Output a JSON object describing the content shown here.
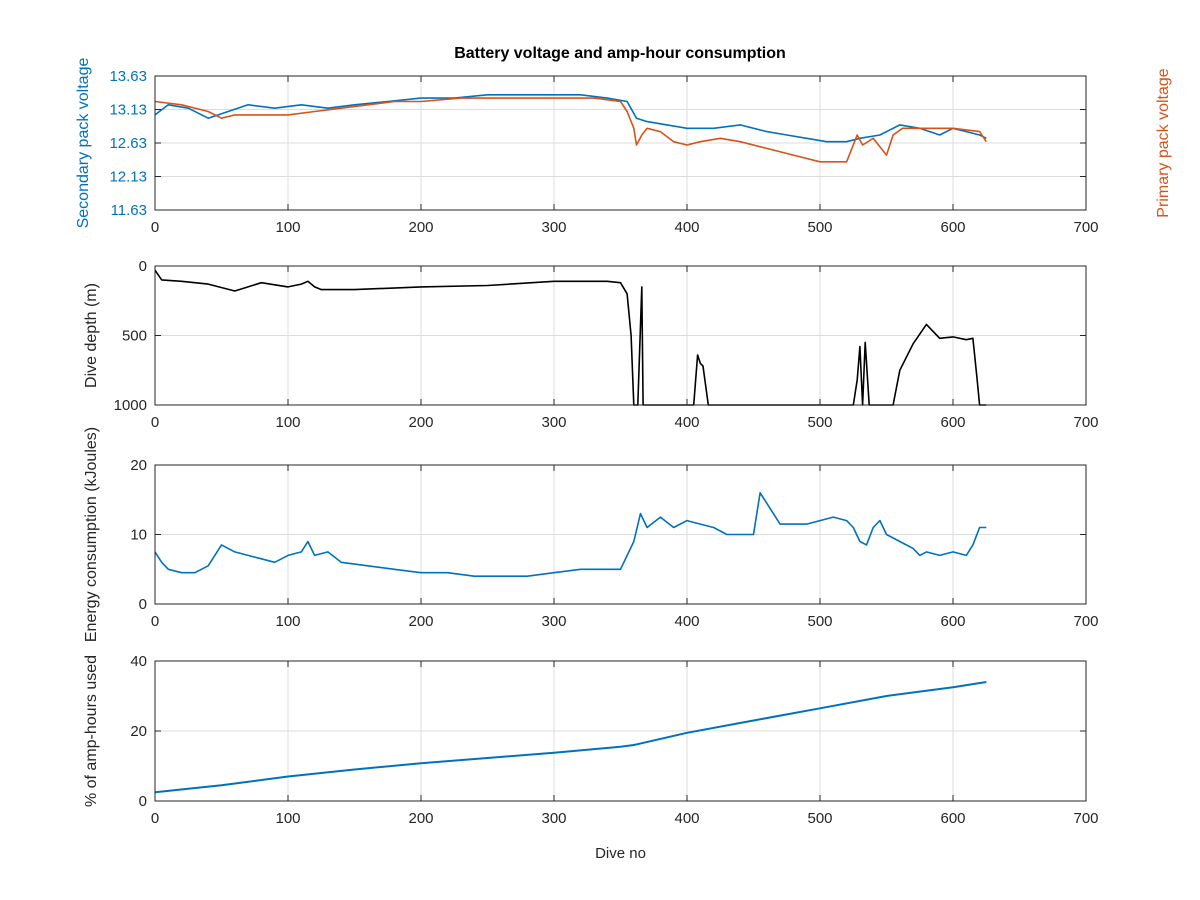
{
  "colors": {
    "blue": "#0072BD",
    "orange": "#D95319",
    "black": "#000000",
    "grid": "#dcdcdc",
    "axis": "#262626"
  },
  "chart_data": [
    {
      "type": "line",
      "title": "Battery voltage and amp-hour consumption",
      "xlabel": "",
      "ylabel": "Secondary pack voltage",
      "ylabel_right": "Primary pack voltage",
      "xlim": [
        0,
        700
      ],
      "ylim": [
        11.63,
        13.63
      ],
      "xticks": [
        0,
        100,
        200,
        300,
        400,
        500,
        600,
        700
      ],
      "yticks": [
        "11.63",
        "12.13",
        "12.63",
        "13.13",
        "13.63"
      ],
      "grid": true,
      "series": [
        {
          "axis": "left",
          "color": "#0072BD",
          "x": [
            0,
            10,
            25,
            40,
            55,
            70,
            90,
            110,
            130,
            150,
            175,
            200,
            225,
            250,
            275,
            300,
            320,
            340,
            355,
            362,
            370,
            385,
            400,
            420,
            440,
            460,
            475,
            490,
            505,
            520,
            530,
            545,
            560,
            575,
            590,
            600,
            610,
            620,
            625
          ],
          "y": [
            13.05,
            13.2,
            13.15,
            13.0,
            13.1,
            13.2,
            13.15,
            13.2,
            13.15,
            13.2,
            13.25,
            13.3,
            13.3,
            13.35,
            13.35,
            13.35,
            13.35,
            13.3,
            13.25,
            13.0,
            12.95,
            12.9,
            12.85,
            12.85,
            12.9,
            12.8,
            12.75,
            12.7,
            12.65,
            12.65,
            12.7,
            12.75,
            12.9,
            12.85,
            12.75,
            12.85,
            12.8,
            12.75,
            12.7
          ]
        },
        {
          "axis": "right",
          "color": "#D95319",
          "x": [
            0,
            20,
            40,
            50,
            60,
            80,
            100,
            120,
            140,
            160,
            180,
            200,
            230,
            260,
            290,
            310,
            330,
            350,
            355,
            360,
            362,
            366,
            370,
            380,
            390,
            400,
            410,
            425,
            440,
            460,
            480,
            500,
            520,
            528,
            532,
            540,
            550,
            555,
            562,
            580,
            600,
            620,
            625
          ],
          "y": [
            13.25,
            13.2,
            13.1,
            13.0,
            13.05,
            13.05,
            13.05,
            13.1,
            13.15,
            13.2,
            13.25,
            13.25,
            13.3,
            13.3,
            13.3,
            13.3,
            13.3,
            13.25,
            13.1,
            12.85,
            12.6,
            12.75,
            12.85,
            12.8,
            12.65,
            12.6,
            12.65,
            12.7,
            12.65,
            12.55,
            12.45,
            12.35,
            12.35,
            12.75,
            12.6,
            12.7,
            12.45,
            12.75,
            12.85,
            12.85,
            12.85,
            12.8,
            12.65
          ]
        }
      ]
    },
    {
      "type": "line",
      "xlabel": "",
      "ylabel": "Dive depth (m)",
      "xlim": [
        0,
        700
      ],
      "ylim": [
        1000,
        0
      ],
      "xticks": [
        0,
        100,
        200,
        300,
        400,
        500,
        600,
        700
      ],
      "yticks": [
        "0",
        "500",
        "1000"
      ],
      "grid": true,
      "series": [
        {
          "color": "#000000",
          "x": [
            0,
            5,
            20,
            40,
            60,
            80,
            100,
            110,
            115,
            120,
            125,
            150,
            200,
            250,
            300,
            340,
            350,
            355,
            358,
            360,
            363,
            366,
            367,
            370,
            372,
            380,
            400,
            405,
            408,
            410,
            412,
            416,
            418,
            430,
            500,
            525,
            528,
            530,
            532,
            534,
            537,
            540,
            550,
            555,
            560,
            570,
            580,
            590,
            600,
            610,
            615,
            618,
            620,
            625
          ],
          "y": [
            30,
            100,
            110,
            130,
            180,
            120,
            150,
            130,
            110,
            150,
            170,
            170,
            150,
            140,
            110,
            110,
            120,
            200,
            500,
            1000,
            1000,
            150,
            1000,
            1000,
            1000,
            1000,
            1000,
            1000,
            640,
            700,
            720,
            1000,
            1000,
            1000,
            1000,
            1000,
            820,
            580,
            1000,
            550,
            1000,
            1000,
            1000,
            1000,
            750,
            560,
            420,
            520,
            510,
            530,
            520,
            800,
            1000,
            1000
          ]
        }
      ]
    },
    {
      "type": "line",
      "xlabel": "",
      "ylabel": "Energy consumption (kJoules)",
      "xlim": [
        0,
        700
      ],
      "ylim": [
        0,
        20
      ],
      "xticks": [
        0,
        100,
        200,
        300,
        400,
        500,
        600,
        700
      ],
      "yticks": [
        "0",
        "10",
        "20"
      ],
      "grid": true,
      "series": [
        {
          "color": "#0072BD",
          "x": [
            0,
            5,
            10,
            20,
            30,
            40,
            50,
            60,
            70,
            80,
            90,
            100,
            110,
            115,
            120,
            130,
            140,
            160,
            180,
            200,
            220,
            240,
            260,
            280,
            300,
            320,
            340,
            350,
            360,
            365,
            370,
            380,
            390,
            400,
            410,
            420,
            430,
            440,
            450,
            455,
            470,
            490,
            510,
            520,
            525,
            530,
            535,
            540,
            545,
            550,
            560,
            570,
            575,
            580,
            590,
            600,
            610,
            615,
            620,
            625
          ],
          "y": [
            7.5,
            6.0,
            5.0,
            4.5,
            4.5,
            5.5,
            8.5,
            7.5,
            7.0,
            6.5,
            6.0,
            7.0,
            7.5,
            9.0,
            7.0,
            7.5,
            6.0,
            5.5,
            5.0,
            4.5,
            4.5,
            4.0,
            4.0,
            4.0,
            4.5,
            5.0,
            5.0,
            5.0,
            9.0,
            13.0,
            11.0,
            12.5,
            11.0,
            12.0,
            11.5,
            11.0,
            10.0,
            10.0,
            10.0,
            16.0,
            11.5,
            11.5,
            12.5,
            12.0,
            11.0,
            9.0,
            8.5,
            11.0,
            12.0,
            10.0,
            9.0,
            8.0,
            7.0,
            7.5,
            7.0,
            7.5,
            7.0,
            8.5,
            11.0,
            11.0
          ]
        }
      ]
    },
    {
      "type": "line",
      "xlabel": "Dive no",
      "ylabel": "% of amp-hours used",
      "xlim": [
        0,
        700
      ],
      "ylim": [
        0,
        40
      ],
      "xticks": [
        0,
        100,
        200,
        300,
        400,
        500,
        600,
        700
      ],
      "yticks": [
        "0",
        "20",
        "40"
      ],
      "grid": true,
      "series": [
        {
          "color": "#0072BD",
          "x": [
            0,
            50,
            100,
            150,
            200,
            250,
            300,
            350,
            360,
            400,
            450,
            500,
            550,
            600,
            625
          ],
          "y": [
            2.5,
            4.5,
            7.0,
            9.0,
            10.8,
            12.3,
            13.8,
            15.5,
            16.0,
            19.5,
            23.0,
            26.5,
            30.0,
            32.5,
            34.0
          ]
        }
      ]
    }
  ]
}
